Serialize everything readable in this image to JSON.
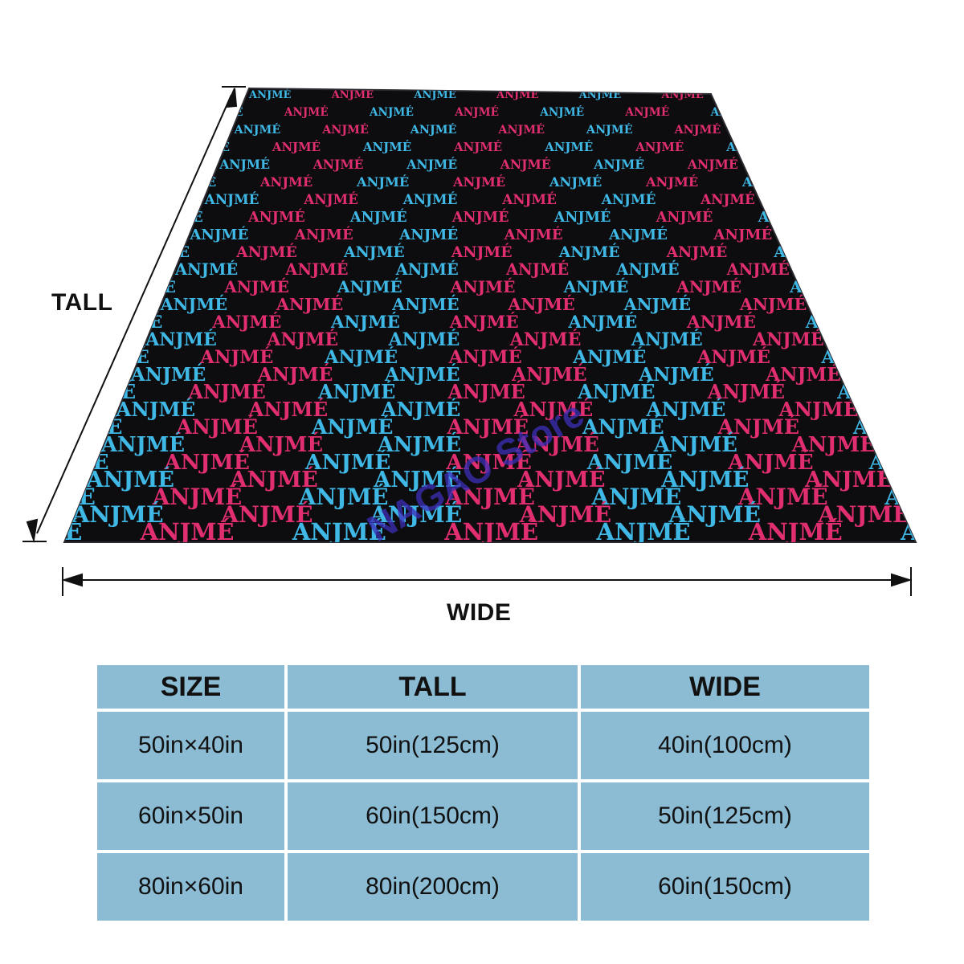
{
  "labels": {
    "tall": "TALL",
    "wide": "WIDE"
  },
  "blanket": {
    "pattern_text": "ANJMÉ",
    "watermark": "NAGAO Store",
    "background_color": "#0d0d10",
    "text_colors": [
      "#3fb8e6",
      "#e02e70"
    ]
  },
  "table": {
    "headers": [
      "SIZE",
      "TALL",
      "WIDE"
    ],
    "rows": [
      [
        "50in×40in",
        "50in(125cm)",
        "40in(100cm)"
      ],
      [
        "60in×50in",
        "60in(150cm)",
        "50in(125cm)"
      ],
      [
        "80in×60in",
        "80in(200cm)",
        "60in(150cm)"
      ]
    ],
    "cell_color": "#8bbcd4"
  }
}
